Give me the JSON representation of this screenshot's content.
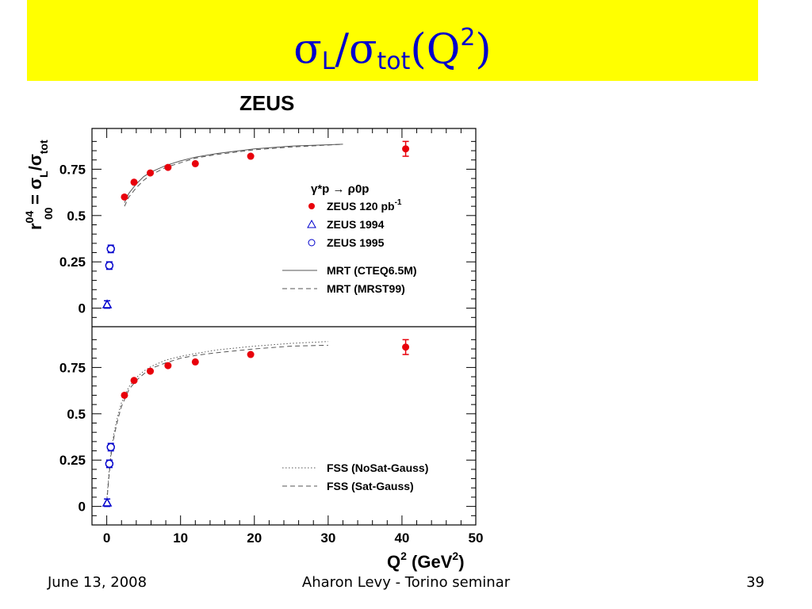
{
  "slide": {
    "title_sigma1": "σ",
    "title_sub1": "L",
    "title_slash": "/",
    "title_sigma2": "σ",
    "title_sub2": "tot",
    "title_q": "(Q",
    "title_sup": "2",
    "title_close": ")",
    "footer_date": "June 13, 2008",
    "footer_center": "Aharon Levy - Torino seminar",
    "footer_page": "39"
  },
  "chart_data": {
    "type": "scatter",
    "figure_label": "ZEUS",
    "xlabel": "Q",
    "xlabel_sup": "2",
    "xlabel_unit": " (GeV",
    "xlabel_unit_sup": "2",
    "xlabel_close": ")",
    "ylabel_r": "r",
    "ylabel_sup": "04",
    "ylabel_sub": "00",
    "ylabel_eq": " = σ",
    "ylabel_L": "L",
    "ylabel_slash": "/σ",
    "ylabel_tot": "tot",
    "xlim": [
      -2,
      50
    ],
    "ylim": [
      -0.1,
      0.97
    ],
    "x_ticks": [
      0,
      10,
      20,
      30,
      40,
      50
    ],
    "y_ticks": [
      0,
      0.25,
      0.5,
      0.75
    ],
    "y_tick_labels": [
      "0",
      "0.25",
      "0.5",
      "0.75"
    ],
    "grid": false,
    "process_label": "γ*p → ρ0p",
    "colors": {
      "zeus120": "#e8000b",
      "zeus_old": "#0000cc",
      "curve": "#555555"
    },
    "panels": [
      {
        "id": "top",
        "series": [
          {
            "name": "ZEUS 120 pb-1",
            "marker": "filled-circle",
            "x": [
              2.4,
              3.7,
              5.9,
              8.3,
              12,
              19.5,
              40.5
            ],
            "y": [
              0.6,
              0.68,
              0.73,
              0.76,
              0.78,
              0.82,
              0.86
            ],
            "err": [
              0,
              0,
              0,
              0,
              0,
              0,
              0.04
            ]
          },
          {
            "name": "ZEUS 1994",
            "marker": "open-triangle",
            "x": [
              0.05
            ],
            "y": [
              0.02
            ],
            "err": [
              0.02
            ]
          },
          {
            "name": "ZEUS 1995",
            "marker": "open-circle",
            "x": [
              0.35,
              0.55
            ],
            "y": [
              0.23,
              0.32
            ],
            "err": [
              0.02,
              0.02
            ]
          },
          {
            "name": "MRT  (CTEQ6.5M)",
            "line": "solid",
            "x": [
              2.4,
              3,
              4,
              5,
              6,
              8,
              10,
              12,
              15,
              20,
              25,
              32
            ],
            "y": [
              0.57,
              0.62,
              0.67,
              0.71,
              0.735,
              0.77,
              0.795,
              0.815,
              0.835,
              0.86,
              0.875,
              0.885
            ]
          },
          {
            "name": "MRT (MRST99)",
            "line": "dashed",
            "x": [
              2.4,
              3,
              4,
              5,
              6,
              8,
              10,
              12,
              15,
              20,
              25,
              32
            ],
            "y": [
              0.55,
              0.6,
              0.65,
              0.69,
              0.72,
              0.76,
              0.785,
              0.81,
              0.83,
              0.855,
              0.87,
              0.885
            ]
          }
        ],
        "legend": [
          "ZEUS 120 pb-1",
          "ZEUS 1994",
          "ZEUS 1995",
          "MRT  (CTEQ6.5M)",
          "MRT (MRST99)"
        ]
      },
      {
        "id": "bottom",
        "series": [
          {
            "name": "ZEUS 120 pb-1",
            "marker": "filled-circle",
            "x": [
              2.4,
              3.7,
              5.9,
              8.3,
              12,
              19.5,
              40.5
            ],
            "y": [
              0.6,
              0.68,
              0.73,
              0.76,
              0.78,
              0.82,
              0.86
            ],
            "err": [
              0,
              0,
              0,
              0,
              0,
              0,
              0.04
            ]
          },
          {
            "name": "ZEUS 1994",
            "marker": "open-triangle",
            "x": [
              0.05
            ],
            "y": [
              0.02
            ],
            "err": [
              0.02
            ]
          },
          {
            "name": "ZEUS 1995",
            "marker": "open-circle",
            "x": [
              0.35,
              0.55
            ],
            "y": [
              0.23,
              0.32
            ],
            "err": [
              0.02,
              0.02
            ]
          },
          {
            "name": "FSS (NoSat-Gauss)",
            "line": "dotted",
            "x": [
              0,
              0.3,
              0.6,
              1,
              1.5,
              2,
              3,
              4,
              5,
              6,
              8,
              10,
              12,
              15,
              20,
              25,
              30
            ],
            "y": [
              0.03,
              0.18,
              0.3,
              0.4,
              0.49,
              0.56,
              0.645,
              0.695,
              0.73,
              0.755,
              0.79,
              0.81,
              0.825,
              0.845,
              0.865,
              0.88,
              0.89
            ]
          },
          {
            "name": "FSS (Sat-Gauss)",
            "line": "dashed",
            "x": [
              0,
              0.3,
              0.6,
              1,
              1.5,
              2,
              3,
              4,
              5,
              6,
              8,
              10,
              12,
              15,
              20,
              25,
              30
            ],
            "y": [
              0.02,
              0.16,
              0.28,
              0.38,
              0.47,
              0.54,
              0.63,
              0.68,
              0.715,
              0.745,
              0.775,
              0.8,
              0.815,
              0.83,
              0.85,
              0.865,
              0.87
            ]
          }
        ],
        "legend": [
          "FSS (NoSat-Gauss)",
          "FSS (Sat-Gauss)"
        ]
      }
    ]
  }
}
